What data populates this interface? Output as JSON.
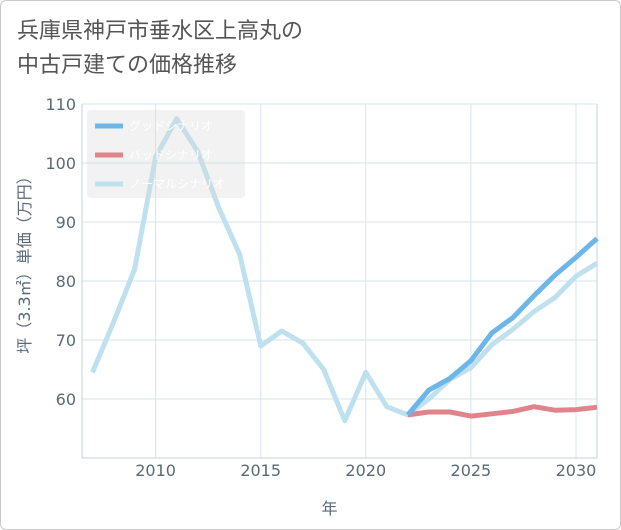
{
  "chart_data": {
    "type": "line",
    "title": "兵庫県神戸市垂水区上高丸の\n中古戸建ての価格推移",
    "xlabel": "年",
    "ylabel": "坪（3.3㎡）単価（万円）",
    "xlim": [
      2006.5,
      2031
    ],
    "ylim": [
      50,
      110
    ],
    "xticks": [
      2010,
      2015,
      2020,
      2025,
      2030
    ],
    "yticks": [
      60,
      70,
      80,
      90,
      100,
      110
    ],
    "grid": true,
    "legend_position": "top-left",
    "series": [
      {
        "name": "グッドシナリオ",
        "color": "#6cb6ea",
        "x": [
          2022,
          2023,
          2024,
          2025,
          2026,
          2027,
          2028,
          2029,
          2030,
          2031
        ],
        "y": [
          57.3,
          61.5,
          63.5,
          66.5,
          71.2,
          73.8,
          77.5,
          81.0,
          84.0,
          87.2
        ]
      },
      {
        "name": "バッドシナリオ",
        "color": "#e0848c",
        "x": [
          2022,
          2023,
          2024,
          2025,
          2026,
          2027,
          2028,
          2029,
          2030,
          2031
        ],
        "y": [
          57.3,
          57.8,
          57.8,
          57.1,
          57.5,
          57.9,
          58.7,
          58.1,
          58.2,
          58.6
        ]
      },
      {
        "name": "ノーマルシナリオ",
        "color": "#bfe0ef",
        "x": [
          2007,
          2008,
          2009,
          2010,
          2011,
          2012,
          2013,
          2014,
          2015,
          2016,
          2017,
          2018,
          2019,
          2020,
          2021,
          2022,
          2023,
          2024,
          2025,
          2026,
          2027,
          2028,
          2029,
          2030,
          2031
        ],
        "y": [
          64.5,
          73.0,
          82.0,
          101.0,
          107.5,
          102.0,
          92.5,
          84.5,
          69.0,
          71.5,
          69.5,
          65.0,
          56.3,
          64.5,
          58.7,
          57.3,
          60.0,
          63.3,
          65.3,
          69.2,
          71.8,
          74.8,
          77.2,
          80.8,
          83.0
        ]
      }
    ]
  }
}
